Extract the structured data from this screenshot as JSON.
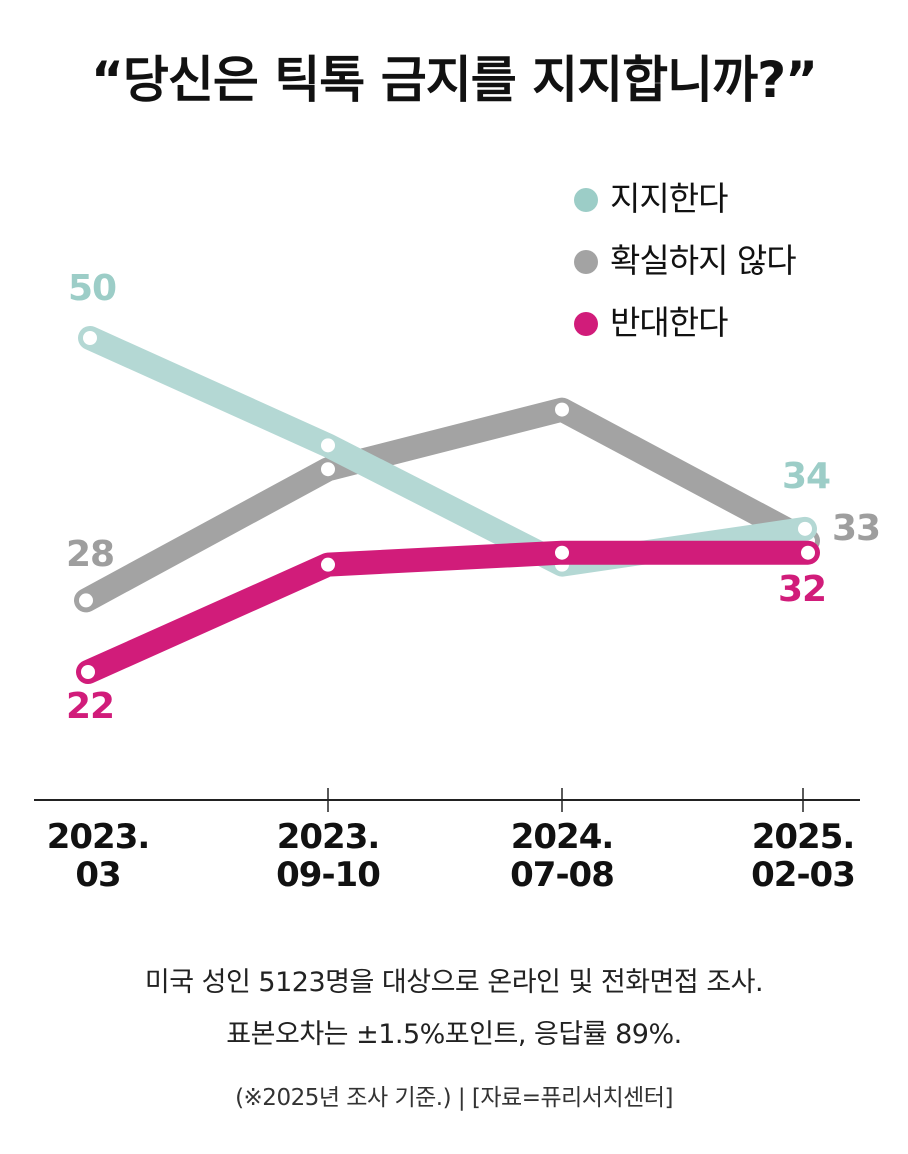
{
  "chart_data": {
    "type": "line",
    "title": "“당신은 틱톡 금지를 지지합니까?”",
    "categories": [
      "2023.\n03",
      "2023.\n09-10",
      "2024.\n07-08",
      "2025.\n02-03"
    ],
    "series": [
      {
        "name": "지지한다",
        "values": [
          50,
          41,
          31,
          34
        ],
        "color": "#b4d8d4",
        "labeled": [
          true,
          false,
          false,
          true
        ],
        "label_color": "#9ccdc7"
      },
      {
        "name": "확실하지 않다",
        "values": [
          28,
          39,
          44,
          33
        ],
        "color": "#a3a3a3",
        "labeled": [
          true,
          false,
          false,
          true
        ],
        "label_color": "#9e9e9e"
      },
      {
        "name": "반대한다",
        "values": [
          22,
          31,
          32,
          32
        ],
        "color": "#d11c7a",
        "labeled": [
          true,
          false,
          false,
          true
        ],
        "label_color": "#d11c7a"
      }
    ],
    "ylim": [
      0,
      60
    ],
    "xlabel": "",
    "ylabel": ""
  },
  "notes": {
    "line1": "미국 성인 5123명을 대상으로 온라인 및 전화면접 조사.",
    "line2": "표본오차는 ±1.5%포인트, 응답률 89%.",
    "source": "(※2025년 조사 기준.) | [자료=퓨리서치센터]"
  }
}
